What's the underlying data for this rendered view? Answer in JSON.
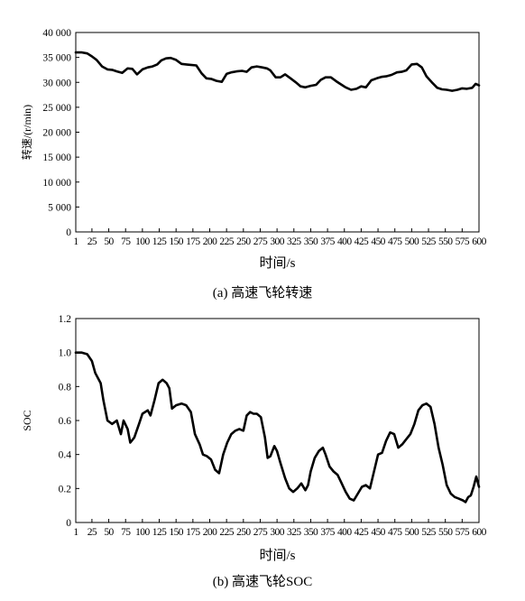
{
  "chart_data": [
    {
      "type": "line",
      "caption": "(a) 高速飞轮转速",
      "xlabel": "时间/s",
      "ylabel": "转速/(r/min)",
      "xlim": [
        1,
        600
      ],
      "ylim": [
        0,
        40000
      ],
      "x_ticks": [
        "1",
        "25",
        "50",
        "75",
        "100",
        "125",
        "150",
        "175",
        "200",
        "225",
        "250",
        "275",
        "300",
        "325",
        "350",
        "375",
        "400",
        "425",
        "450",
        "475",
        "500",
        "525",
        "550",
        "575",
        "600"
      ],
      "y_ticks": [
        "0",
        "5 000",
        "10 000",
        "15 000",
        "20 000",
        "25 000",
        "30 000",
        "35 000",
        "40 000"
      ],
      "grid": false,
      "series": [
        {
          "x": [
            1,
            10,
            18,
            25,
            32,
            40,
            48,
            55,
            62,
            70,
            78,
            85,
            92,
            100,
            108,
            115,
            122,
            128,
            135,
            142,
            150,
            158,
            165,
            172,
            180,
            188,
            195,
            202,
            210,
            218,
            225,
            232,
            240,
            248,
            255,
            262,
            270,
            278,
            285,
            290,
            298,
            305,
            312,
            320,
            328,
            335,
            342,
            350,
            358,
            365,
            372,
            380,
            388,
            395,
            402,
            410,
            418,
            425,
            432,
            440,
            448,
            455,
            462,
            470,
            478,
            485,
            492,
            500,
            508,
            515,
            522,
            530,
            538,
            545,
            552,
            560,
            568,
            575,
            582,
            590,
            595,
            600
          ],
          "y": [
            36000,
            36000,
            35800,
            35200,
            34500,
            33200,
            32600,
            32500,
            32200,
            31900,
            32800,
            32700,
            31600,
            32600,
            33000,
            33200,
            33600,
            34400,
            34800,
            34900,
            34500,
            33700,
            33600,
            33500,
            33400,
            31800,
            30800,
            30700,
            30300,
            30100,
            31700,
            32000,
            32200,
            32300,
            32100,
            33000,
            33200,
            33000,
            32800,
            32400,
            31000,
            31000,
            31600,
            30800,
            30000,
            29200,
            29000,
            29300,
            29500,
            30500,
            31000,
            31000,
            30200,
            29600,
            29000,
            28500,
            28700,
            29200,
            29000,
            30400,
            30800,
            31100,
            31200,
            31500,
            32000,
            32100,
            32400,
            33600,
            33700,
            33000,
            31200,
            30000,
            28900,
            28600,
            28500,
            28300,
            28500,
            28800,
            28700,
            28900,
            29700,
            29400
          ]
        }
      ]
    },
    {
      "type": "line",
      "caption": "(b) 高速飞轮SOC",
      "xlabel": "时间/s",
      "ylabel": "SOC",
      "xlim": [
        1,
        600
      ],
      "ylim": [
        0,
        1.2
      ],
      "x_ticks": [
        "1",
        "25",
        "50",
        "75",
        "100",
        "125",
        "150",
        "175",
        "200",
        "225",
        "250",
        "275",
        "300",
        "325",
        "350",
        "375",
        "400",
        "425",
        "450",
        "475",
        "500",
        "525",
        "550",
        "575",
        "600"
      ],
      "y_ticks": [
        "0",
        "0.2",
        "0.4",
        "0.6",
        "0.8",
        "1.0",
        "1.2"
      ],
      "grid": false,
      "series": [
        {
          "x": [
            1,
            10,
            18,
            25,
            30,
            38,
            42,
            48,
            55,
            62,
            68,
            72,
            78,
            82,
            88,
            95,
            100,
            108,
            112,
            118,
            124,
            130,
            136,
            140,
            144,
            150,
            158,
            165,
            172,
            178,
            185,
            190,
            196,
            202,
            208,
            214,
            220,
            226,
            232,
            238,
            244,
            250,
            255,
            260,
            265,
            270,
            276,
            282,
            286,
            290,
            296,
            300,
            305,
            312,
            318,
            324,
            330,
            336,
            342,
            346,
            350,
            356,
            362,
            368,
            372,
            378,
            384,
            390,
            396,
            402,
            408,
            414,
            420,
            426,
            432,
            438,
            444,
            450,
            456,
            462,
            468,
            474,
            480,
            486,
            492,
            498,
            504,
            510,
            516,
            522,
            528,
            534,
            540,
            546,
            552,
            558,
            564,
            570,
            576,
            580,
            584,
            588,
            592,
            596,
            600
          ],
          "y": [
            1.0,
            1.0,
            0.99,
            0.95,
            0.88,
            0.82,
            0.72,
            0.6,
            0.58,
            0.6,
            0.52,
            0.6,
            0.55,
            0.47,
            0.5,
            0.58,
            0.64,
            0.66,
            0.63,
            0.72,
            0.82,
            0.84,
            0.82,
            0.79,
            0.67,
            0.69,
            0.7,
            0.69,
            0.65,
            0.52,
            0.46,
            0.4,
            0.39,
            0.37,
            0.31,
            0.29,
            0.4,
            0.47,
            0.52,
            0.54,
            0.55,
            0.54,
            0.63,
            0.65,
            0.64,
            0.64,
            0.62,
            0.5,
            0.38,
            0.39,
            0.45,
            0.42,
            0.35,
            0.26,
            0.2,
            0.18,
            0.2,
            0.23,
            0.19,
            0.22,
            0.3,
            0.38,
            0.42,
            0.44,
            0.4,
            0.33,
            0.3,
            0.28,
            0.23,
            0.18,
            0.14,
            0.13,
            0.17,
            0.21,
            0.22,
            0.2,
            0.3,
            0.4,
            0.41,
            0.48,
            0.53,
            0.52,
            0.44,
            0.46,
            0.49,
            0.52,
            0.58,
            0.66,
            0.69,
            0.7,
            0.68,
            0.58,
            0.44,
            0.34,
            0.22,
            0.17,
            0.15,
            0.14,
            0.13,
            0.12,
            0.15,
            0.16,
            0.21,
            0.27,
            0.21
          ]
        }
      ]
    }
  ]
}
